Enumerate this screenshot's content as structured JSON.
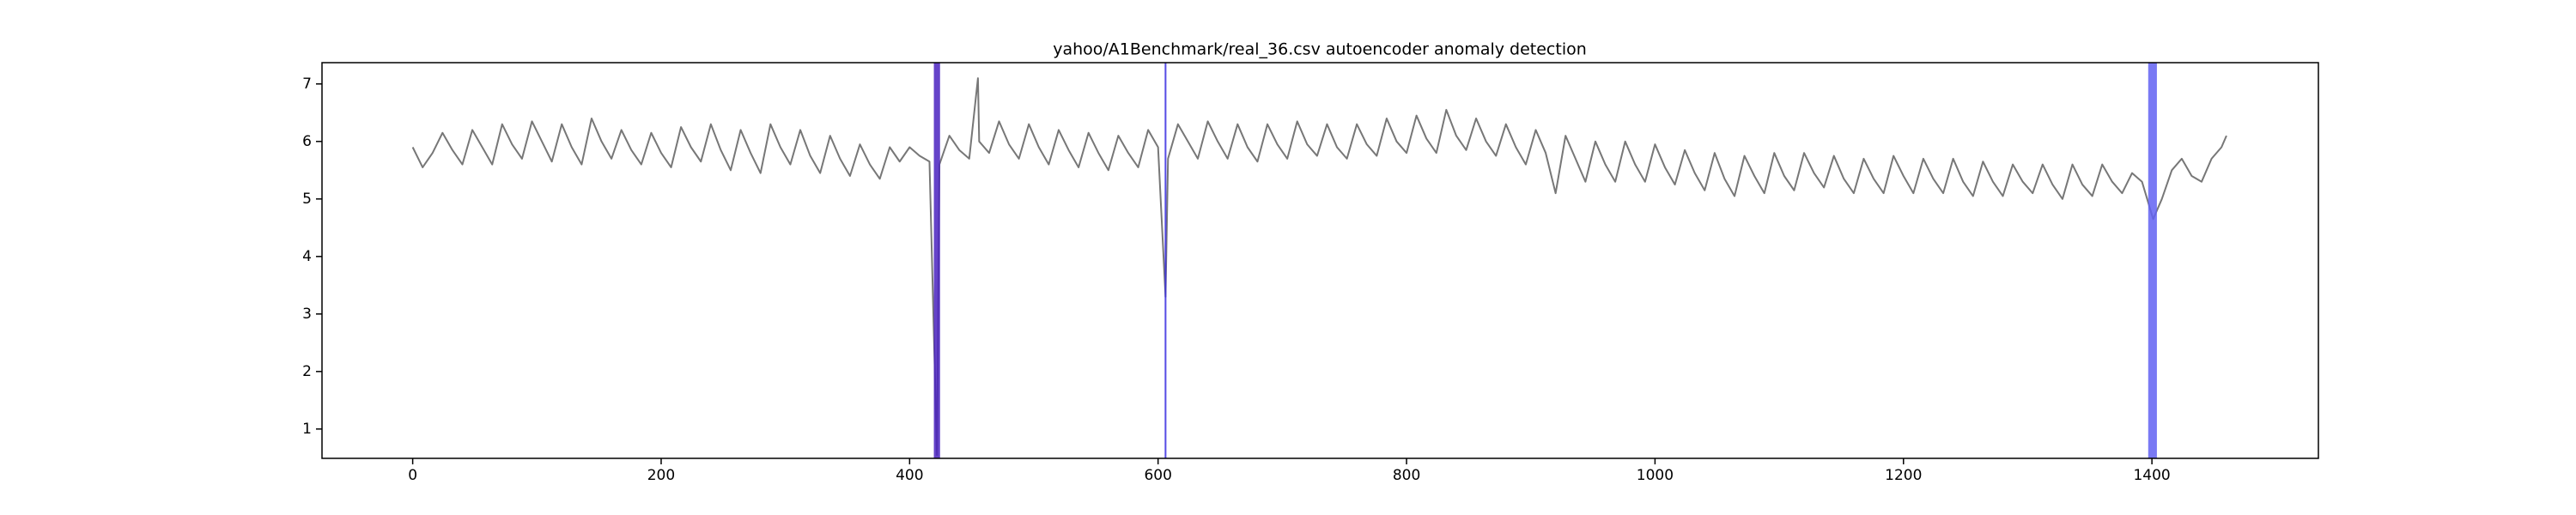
{
  "chart_data": {
    "type": "line",
    "title": "yahoo/A1Benchmark/real_36.csv autoencoder anomaly detection",
    "x": [
      0,
      8,
      16,
      24,
      32,
      40,
      48,
      56,
      64,
      72,
      80,
      88,
      96,
      104,
      112,
      120,
      128,
      136,
      144,
      152,
      160,
      168,
      176,
      184,
      192,
      200,
      208,
      216,
      224,
      232,
      240,
      248,
      256,
      264,
      272,
      280,
      288,
      296,
      304,
      312,
      320,
      328,
      336,
      344,
      352,
      360,
      368,
      376,
      384,
      392,
      400,
      408,
      416,
      422,
      424,
      432,
      440,
      448,
      455,
      456,
      464,
      472,
      480,
      488,
      496,
      504,
      512,
      520,
      528,
      536,
      544,
      552,
      560,
      568,
      576,
      584,
      592,
      600,
      606,
      608,
      616,
      624,
      632,
      640,
      648,
      656,
      664,
      672,
      680,
      688,
      696,
      704,
      712,
      720,
      728,
      736,
      744,
      752,
      760,
      768,
      776,
      784,
      792,
      800,
      808,
      816,
      824,
      832,
      840,
      848,
      856,
      864,
      872,
      880,
      888,
      896,
      904,
      912,
      920,
      928,
      936,
      944,
      952,
      960,
      968,
      976,
      984,
      992,
      1000,
      1008,
      1016,
      1024,
      1032,
      1040,
      1048,
      1056,
      1064,
      1072,
      1080,
      1088,
      1096,
      1104,
      1112,
      1120,
      1128,
      1136,
      1144,
      1152,
      1160,
      1168,
      1176,
      1184,
      1192,
      1200,
      1208,
      1216,
      1224,
      1232,
      1240,
      1248,
      1256,
      1264,
      1272,
      1280,
      1288,
      1296,
      1304,
      1312,
      1320,
      1328,
      1336,
      1344,
      1352,
      1360,
      1368,
      1376,
      1384,
      1392,
      1401,
      1408,
      1416,
      1424,
      1432,
      1440,
      1448,
      1456,
      1460
    ],
    "series": [
      {
        "color": "#777777",
        "values": [
          5.9,
          5.55,
          5.8,
          6.15,
          5.85,
          5.6,
          6.2,
          5.9,
          5.6,
          6.3,
          5.95,
          5.7,
          6.35,
          6.0,
          5.65,
          6.3,
          5.9,
          5.6,
          6.4,
          6.0,
          5.7,
          6.2,
          5.85,
          5.6,
          6.15,
          5.8,
          5.55,
          6.25,
          5.9,
          5.65,
          6.3,
          5.85,
          5.5,
          6.2,
          5.8,
          5.45,
          6.3,
          5.9,
          5.6,
          6.2,
          5.75,
          5.45,
          6.1,
          5.7,
          5.4,
          5.95,
          5.6,
          5.35,
          5.9,
          5.65,
          5.9,
          5.75,
          5.65,
          0.55,
          5.6,
          6.1,
          5.85,
          5.7,
          7.1,
          6.0,
          5.8,
          6.35,
          5.95,
          5.7,
          6.3,
          5.9,
          5.6,
          6.2,
          5.85,
          5.55,
          6.15,
          5.8,
          5.5,
          6.1,
          5.8,
          5.55,
          6.2,
          5.9,
          3.3,
          5.7,
          6.3,
          6.0,
          5.7,
          6.35,
          6.0,
          5.7,
          6.3,
          5.9,
          5.65,
          6.3,
          5.95,
          5.7,
          6.35,
          5.95,
          5.75,
          6.3,
          5.9,
          5.7,
          6.3,
          5.95,
          5.75,
          6.4,
          6.0,
          5.8,
          6.45,
          6.05,
          5.8,
          6.55,
          6.1,
          5.85,
          6.4,
          6.0,
          5.75,
          6.3,
          5.9,
          5.6,
          6.2,
          5.8,
          5.1,
          6.1,
          5.7,
          5.3,
          6.0,
          5.6,
          5.3,
          6.0,
          5.6,
          5.3,
          5.95,
          5.55,
          5.25,
          5.85,
          5.45,
          5.15,
          5.8,
          5.35,
          5.05,
          5.75,
          5.4,
          5.1,
          5.8,
          5.4,
          5.15,
          5.8,
          5.45,
          5.2,
          5.75,
          5.35,
          5.1,
          5.7,
          5.35,
          5.1,
          5.75,
          5.4,
          5.1,
          5.7,
          5.35,
          5.1,
          5.7,
          5.3,
          5.05,
          5.65,
          5.3,
          5.05,
          5.6,
          5.3,
          5.1,
          5.6,
          5.25,
          5.0,
          5.6,
          5.25,
          5.05,
          5.6,
          5.3,
          5.1,
          5.45,
          5.3,
          4.65,
          5.0,
          5.5,
          5.7,
          5.4,
          5.3,
          5.7,
          5.9,
          6.1
        ]
      }
    ],
    "anomalies": [
      {
        "start": 419.5,
        "end": 424.5,
        "color": "#4a22c0"
      },
      {
        "start": 605.3,
        "end": 606.7,
        "color": "#3a2ee0"
      },
      {
        "start": 1397,
        "end": 1404,
        "color": "#6262f2"
      }
    ],
    "xlim": [
      -73,
      1534
    ],
    "ylim": [
      0.49,
      7.37
    ],
    "xticks": [
      0,
      200,
      400,
      600,
      800,
      1000,
      1200,
      1400
    ],
    "yticks": [
      1,
      2,
      3,
      4,
      5,
      6,
      7
    ],
    "grid": false
  }
}
